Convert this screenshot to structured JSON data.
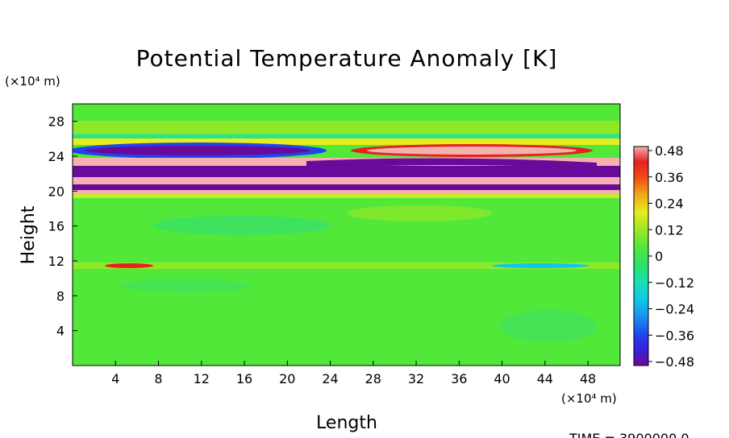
{
  "chart_data": {
    "type": "heatmap",
    "title": "Potential Temperature Anomaly [K]",
    "xlabel": "Length",
    "ylabel": "Height",
    "x_unit": "(×10⁴ m)",
    "y_unit": "(×10⁴ m)",
    "xlim": [
      0,
      51
    ],
    "ylim": [
      0,
      30
    ],
    "x_ticks": [
      "4",
      "8",
      "12",
      "16",
      "20",
      "24",
      "28",
      "32",
      "36",
      "40",
      "44",
      "48"
    ],
    "y_ticks": [
      "4",
      "8",
      "12",
      "16",
      "20",
      "24",
      "28"
    ],
    "colorbar": {
      "ticks": [
        "0.48",
        "0.36",
        "0.24",
        "0.12",
        "0",
        "−0.12",
        "−0.24",
        "−0.36",
        "−0.48"
      ],
      "range": [
        -0.48,
        0.48
      ]
    },
    "footer": "TIME = 3900000.0"
  },
  "colors": {
    "background_field": "#52e83a",
    "neutral": "#37e06d"
  }
}
